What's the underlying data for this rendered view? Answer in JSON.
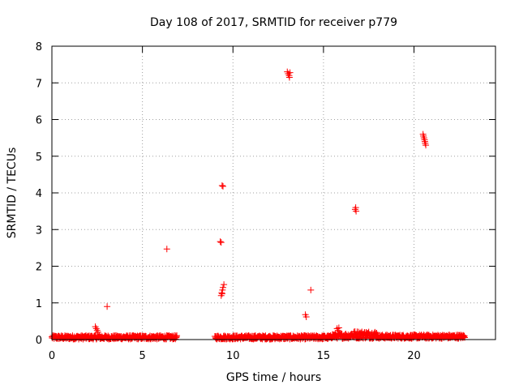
{
  "chart_data": {
    "type": "scatter",
    "title": "Day 108 of 2017, SRMTID for receiver p779",
    "xlabel": "GPS time / hours",
    "ylabel": "SRMTID / TECUs",
    "xlim": [
      0,
      24.5
    ],
    "ylim": [
      0,
      8
    ],
    "xticks": [
      0,
      5,
      10,
      15,
      20
    ],
    "yticks": [
      0,
      1,
      2,
      3,
      4,
      5,
      6,
      7,
      8
    ],
    "grid": true,
    "marker": "+",
    "color": "#ff0000",
    "baseline_segments": [
      {
        "x_start": 0.0,
        "x_end": 6.9,
        "y_level": 0.06,
        "y_jitter": 0.05
      },
      {
        "x_start": 9.0,
        "x_end": 15.4,
        "y_level": 0.06,
        "y_jitter": 0.05
      },
      {
        "x_start": 15.4,
        "x_end": 16.5,
        "y_level": 0.1,
        "y_jitter": 0.07
      },
      {
        "x_start": 16.5,
        "x_end": 18.0,
        "y_level": 0.13,
        "y_jitter": 0.1
      },
      {
        "x_start": 18.0,
        "x_end": 22.8,
        "y_level": 0.08,
        "y_jitter": 0.05
      }
    ],
    "points": [
      {
        "x": 2.4,
        "y": 0.35
      },
      {
        "x": 2.45,
        "y": 0.3
      },
      {
        "x": 2.5,
        "y": 0.25
      },
      {
        "x": 2.55,
        "y": 0.2
      },
      {
        "x": 3.05,
        "y": 0.9
      },
      {
        "x": 6.35,
        "y": 2.47
      },
      {
        "x": 9.3,
        "y": 2.67
      },
      {
        "x": 9.35,
        "y": 2.65
      },
      {
        "x": 9.4,
        "y": 4.2
      },
      {
        "x": 9.45,
        "y": 4.18
      },
      {
        "x": 9.35,
        "y": 1.2
      },
      {
        "x": 9.38,
        "y": 1.28
      },
      {
        "x": 9.42,
        "y": 1.35
      },
      {
        "x": 9.45,
        "y": 1.42
      },
      {
        "x": 9.5,
        "y": 1.5
      },
      {
        "x": 9.4,
        "y": 1.25
      },
      {
        "x": 13.0,
        "y": 7.3
      },
      {
        "x": 13.05,
        "y": 7.25
      },
      {
        "x": 13.1,
        "y": 7.2
      },
      {
        "x": 13.12,
        "y": 7.15
      },
      {
        "x": 13.15,
        "y": 7.28
      },
      {
        "x": 14.0,
        "y": 0.68
      },
      {
        "x": 14.05,
        "y": 0.62
      },
      {
        "x": 14.3,
        "y": 1.35
      },
      {
        "x": 15.75,
        "y": 0.3
      },
      {
        "x": 15.8,
        "y": 0.25
      },
      {
        "x": 15.85,
        "y": 0.32
      },
      {
        "x": 16.75,
        "y": 3.55
      },
      {
        "x": 16.8,
        "y": 3.5
      },
      {
        "x": 16.78,
        "y": 3.6
      },
      {
        "x": 20.5,
        "y": 5.6
      },
      {
        "x": 20.52,
        "y": 5.55
      },
      {
        "x": 20.55,
        "y": 5.5
      },
      {
        "x": 20.58,
        "y": 5.45
      },
      {
        "x": 20.6,
        "y": 5.4
      },
      {
        "x": 20.62,
        "y": 5.35
      },
      {
        "x": 20.65,
        "y": 5.3
      }
    ]
  }
}
